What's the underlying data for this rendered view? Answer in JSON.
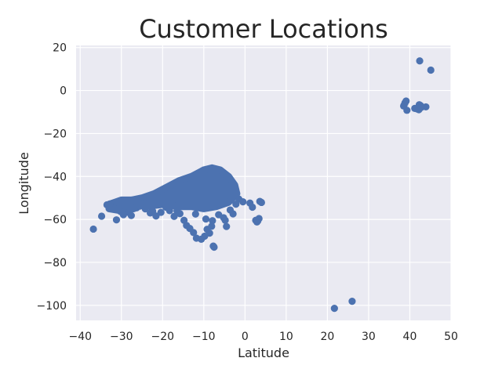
{
  "colors": {
    "background": "#ffffff",
    "plot_background": "#eaeaf2",
    "grid": "#ffffff",
    "marker": "#4c72b0",
    "text": "#262626"
  },
  "chart_data": {
    "type": "scatter",
    "title": "Customer Locations",
    "xlabel": "Latitude",
    "ylabel": "Longitude",
    "xlim": [
      -41,
      50
    ],
    "ylim": [
      -107,
      21
    ],
    "grid": true,
    "style": "seaborn darkgrid",
    "x_ticks": [
      "−40",
      "−30",
      "−20",
      "−10",
      "0",
      "10",
      "20",
      "30",
      "40",
      "50"
    ],
    "y_ticks": [
      "20",
      "0",
      "−20",
      "−40",
      "−60",
      "−80",
      "−100"
    ],
    "x_tick_values": [
      -40,
      -30,
      -20,
      -10,
      0,
      10,
      20,
      30,
      40,
      50
    ],
    "y_tick_values": [
      20,
      0,
      -20,
      -40,
      -60,
      -80,
      -100
    ],
    "dense_regions": [
      {
        "name": "main-cluster-core",
        "points": [
          [
            -27.5,
            -51
          ],
          [
            -25,
            -50
          ],
          [
            -22,
            -48
          ],
          [
            -19,
            -45
          ],
          [
            -16,
            -42
          ],
          [
            -13,
            -40
          ],
          [
            -10,
            -37
          ],
          [
            -8,
            -36
          ],
          [
            -6,
            -37
          ],
          [
            -4,
            -40
          ],
          [
            -2.5,
            -44
          ],
          [
            -2,
            -48
          ],
          [
            -4,
            -52
          ],
          [
            -7,
            -54
          ],
          [
            -10,
            -55
          ],
          [
            -13,
            -54
          ],
          [
            -16,
            -54
          ],
          [
            -20,
            -53
          ],
          [
            -24,
            -54
          ]
        ]
      },
      {
        "name": "main-cluster-tail",
        "points": [
          [
            -33,
            -53
          ],
          [
            -30,
            -51
          ],
          [
            -27,
            -51
          ],
          [
            -25,
            -53
          ],
          [
            -27,
            -55
          ],
          [
            -30,
            -56
          ],
          [
            -33,
            -55
          ]
        ]
      }
    ],
    "points": [
      [
        -36.8,
        -64.5
      ],
      [
        -34.8,
        -58.5
      ],
      [
        -31.2,
        -60.2
      ],
      [
        -33.5,
        -53.2
      ],
      [
        -32.8,
        -52.8
      ],
      [
        -31.5,
        -55.2
      ],
      [
        -30.2,
        -56.3
      ],
      [
        -29.5,
        -57.8
      ],
      [
        -28.2,
        -56.8
      ],
      [
        -27.6,
        -58.2
      ],
      [
        -26.3,
        -54.6
      ],
      [
        -25.5,
        -53.8
      ],
      [
        -24.2,
        -55.1
      ],
      [
        -22.4,
        -56.2
      ],
      [
        -21.6,
        -58.4
      ],
      [
        -20.4,
        -56.7
      ],
      [
        -19.2,
        -54.3
      ],
      [
        -18.3,
        -55.9
      ],
      [
        -17.2,
        -58.6
      ],
      [
        -15.8,
        -57.3
      ],
      [
        -14.8,
        -60.4
      ],
      [
        -14.2,
        -62.8
      ],
      [
        -13.4,
        -64.2
      ],
      [
        -12.5,
        -66.1
      ],
      [
        -11.8,
        -68.7
      ],
      [
        -10.6,
        -69.2
      ],
      [
        -9.8,
        -67.8
      ],
      [
        -9.2,
        -64.6
      ],
      [
        -8.6,
        -66.4
      ],
      [
        -7.7,
        -72.4
      ],
      [
        -7.5,
        -72.9
      ],
      [
        -8.1,
        -63.2
      ],
      [
        -7.9,
        -60.6
      ],
      [
        -6.4,
        -57.8
      ],
      [
        -5.2,
        -59.2
      ],
      [
        -4.5,
        -63.3
      ],
      [
        -4.8,
        -60.4
      ],
      [
        -3.6,
        -55.6
      ],
      [
        -2.9,
        -57.4
      ],
      [
        -2.2,
        -52.9
      ],
      [
        -1.5,
        -50.5
      ],
      [
        -0.5,
        -51.8
      ],
      [
        1.2,
        -52.4
      ],
      [
        1.8,
        -54.3
      ],
      [
        3.6,
        -51.6
      ],
      [
        4.0,
        -52.1
      ],
      [
        2.6,
        -60.4
      ],
      [
        2.9,
        -61.2
      ],
      [
        3.1,
        -60.7
      ],
      [
        3.4,
        -59.6
      ],
      [
        -9.5,
        -59.8
      ],
      [
        -12.0,
        -57.5
      ],
      [
        -16.5,
        -56.0
      ],
      [
        -23.0,
        -57.0
      ],
      [
        38.8,
        -5.8
      ],
      [
        39.1,
        -4.9
      ],
      [
        38.5,
        -7.2
      ],
      [
        39.3,
        -9.2
      ],
      [
        38.6,
        -6.8
      ],
      [
        41.2,
        -8.3
      ],
      [
        41.8,
        -8.6
      ],
      [
        42.2,
        -8.9
      ],
      [
        42.6,
        -7.0
      ],
      [
        42.3,
        -6.6
      ],
      [
        43.9,
        -7.6
      ],
      [
        42.8,
        -7.8
      ],
      [
        42.4,
        13.8
      ],
      [
        45.1,
        9.5
      ],
      [
        21.7,
        -101.4
      ],
      [
        26.0,
        -98.1
      ]
    ]
  }
}
